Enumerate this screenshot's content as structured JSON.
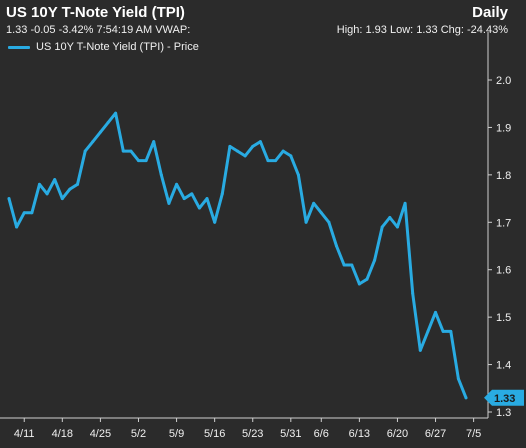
{
  "header": {
    "title": "US 10Y T-Note Yield (TPI)",
    "interval": "Daily",
    "quote_line": "1.33 -0.05 -3.42% 7:54:19 AM VWAP:",
    "stats_line": "High: 1.93 Low: 1.33 Chg: -24.43%"
  },
  "legend": {
    "label": "US 10Y T-Note Yield (TPI) - Price"
  },
  "colors": {
    "background": "#2b2b2b",
    "series": "#29abe2",
    "axis": "#cfcfcf",
    "text": "#f0f0f0"
  },
  "last_value_label": "1.33",
  "chart_data": {
    "type": "line",
    "title": "US 10Y T-Note Yield (TPI)",
    "xlabel": "",
    "ylabel": "",
    "ylim": [
      1.3,
      2.0
    ],
    "yticks": [
      "2.0",
      "1.9",
      "1.8",
      "1.7",
      "1.6",
      "1.5",
      "1.4",
      "1.3"
    ],
    "ytick_values": [
      2.0,
      1.9,
      1.8,
      1.7,
      1.6,
      1.5,
      1.4,
      1.3
    ],
    "xtick_labels": [
      "4/11",
      "4/18",
      "4/25",
      "5/2",
      "5/9",
      "5/16",
      "5/23",
      "5/31",
      "6/6",
      "6/13",
      "6/20",
      "6/27",
      "7/5"
    ],
    "xtick_indices": [
      2,
      7,
      12,
      17,
      22,
      27,
      32,
      37,
      41,
      46,
      51,
      56,
      61
    ],
    "grid": false,
    "legend_position": "top-left",
    "series": [
      {
        "name": "US 10Y T-Note Yield (TPI) - Price",
        "values": [
          1.75,
          1.69,
          1.72,
          1.72,
          1.78,
          1.76,
          1.79,
          1.75,
          1.77,
          1.78,
          1.85,
          1.87,
          1.89,
          1.91,
          1.93,
          1.85,
          1.85,
          1.83,
          1.83,
          1.87,
          1.8,
          1.74,
          1.78,
          1.75,
          1.76,
          1.73,
          1.75,
          1.7,
          1.76,
          1.86,
          1.85,
          1.84,
          1.86,
          1.87,
          1.83,
          1.83,
          1.85,
          1.84,
          1.8,
          1.7,
          1.74,
          1.72,
          1.7,
          1.65,
          1.61,
          1.61,
          1.57,
          1.58,
          1.62,
          1.69,
          1.71,
          1.69,
          1.74,
          1.55,
          1.43,
          1.47,
          1.51,
          1.47,
          1.47,
          1.37,
          1.33
        ]
      }
    ]
  }
}
